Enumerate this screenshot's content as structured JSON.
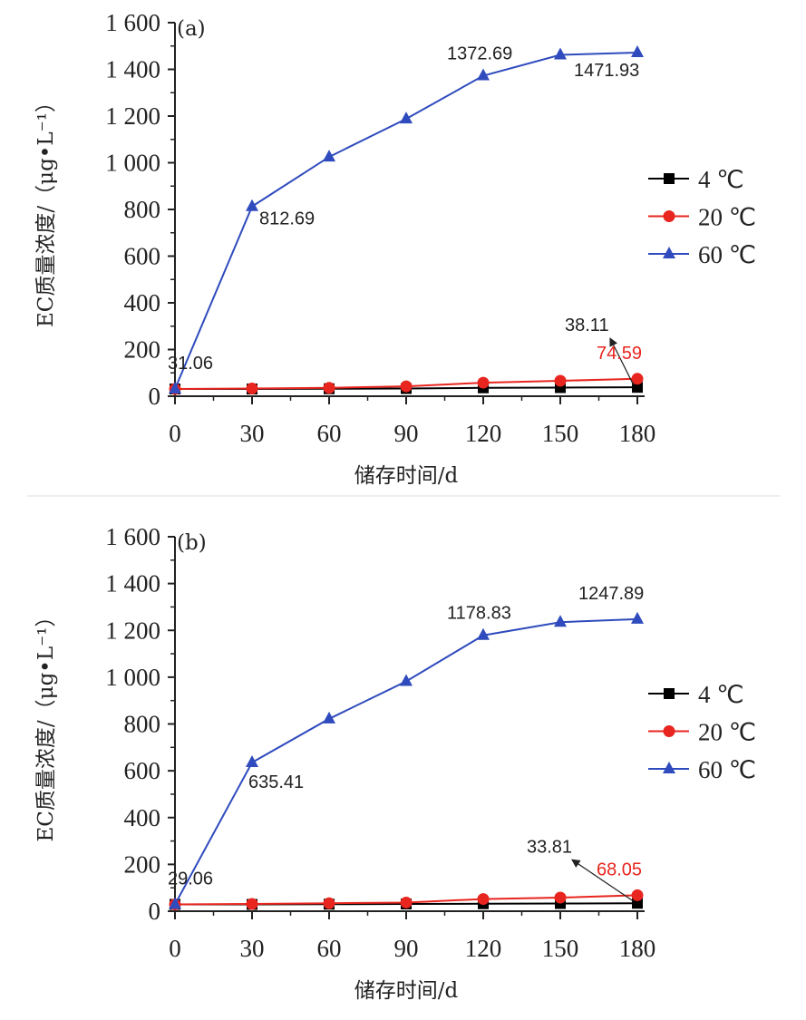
{
  "chart_data": [
    {
      "type": "line",
      "panel_label": "(a)",
      "xlabel": "储存时间/d",
      "ylabel": "EC质量浓度/（μg•L⁻¹）",
      "x": [
        0,
        30,
        60,
        90,
        120,
        150,
        180
      ],
      "xticks": [
        "0",
        "30",
        "60",
        "90",
        "120",
        "150",
        "180"
      ],
      "yticks": [
        "0",
        "200",
        "400",
        "600",
        "800",
        "1 000",
        "1 200",
        "1 400",
        "1 600"
      ],
      "ylim": [
        0,
        1600
      ],
      "legend_position": "right",
      "series": [
        {
          "name": "4 ℃",
          "color": "#000000",
          "marker": "square",
          "values": [
            31.06,
            31,
            32,
            33,
            36,
            37,
            38.11
          ]
        },
        {
          "name": "20 ℃",
          "color": "#e8251f",
          "marker": "circle",
          "values": [
            31.06,
            33,
            36,
            42,
            58,
            66,
            74.59
          ]
        },
        {
          "name": "60 ℃",
          "color": "#2f4bbd",
          "marker": "triangle",
          "values": [
            31.06,
            812.69,
            1025,
            1188,
            1372.69,
            1462,
            1471.93
          ]
        }
      ],
      "annotations": [
        {
          "text": "31.06",
          "x": 0,
          "y": 31.06,
          "color": "#222222"
        },
        {
          "text": "812.69",
          "x": 30,
          "y": 812.69,
          "color": "#222222"
        },
        {
          "text": "1372.69",
          "x": 120,
          "y": 1372.69,
          "color": "#222222"
        },
        {
          "text": "1471.93",
          "x": 180,
          "y": 1471.93,
          "color": "#222222"
        },
        {
          "text": "38.11",
          "x": 180,
          "y": 38.11,
          "color": "#222222",
          "arrow": true
        },
        {
          "text": "74.59",
          "x": 180,
          "y": 74.59,
          "color": "#e8251f"
        }
      ]
    },
    {
      "type": "line",
      "panel_label": "(b)",
      "xlabel": "储存时间/d",
      "ylabel": "EC质量浓度/（μg•L⁻¹）",
      "x": [
        0,
        30,
        60,
        90,
        120,
        150,
        180
      ],
      "xticks": [
        "0",
        "30",
        "60",
        "90",
        "120",
        "150",
        "180"
      ],
      "yticks": [
        "0",
        "200",
        "400",
        "600",
        "800",
        "1 000",
        "1 200",
        "1 400",
        "1 600"
      ],
      "ylim": [
        0,
        1600
      ],
      "legend_position": "right",
      "series": [
        {
          "name": "4 ℃",
          "color": "#000000",
          "marker": "square",
          "values": [
            29.06,
            29,
            30,
            31,
            32,
            33,
            33.81
          ]
        },
        {
          "name": "20 ℃",
          "color": "#e8251f",
          "marker": "circle",
          "values": [
            29.06,
            31,
            34,
            37,
            52,
            58,
            68.05
          ]
        },
        {
          "name": "60 ℃",
          "color": "#2f4bbd",
          "marker": "triangle",
          "values": [
            29.06,
            635.41,
            822,
            982,
            1178.83,
            1235,
            1247.89
          ]
        }
      ],
      "annotations": [
        {
          "text": "29.06",
          "x": 0,
          "y": 29.06,
          "color": "#222222"
        },
        {
          "text": "635.41",
          "x": 30,
          "y": 635.41,
          "color": "#222222"
        },
        {
          "text": "1178.83",
          "x": 120,
          "y": 1178.83,
          "color": "#222222"
        },
        {
          "text": "1247.89",
          "x": 180,
          "y": 1247.89,
          "color": "#222222"
        },
        {
          "text": "33.81",
          "x": 180,
          "y": 33.81,
          "color": "#222222",
          "arrow": true
        },
        {
          "text": "68.05",
          "x": 180,
          "y": 68.05,
          "color": "#e8251f"
        }
      ]
    }
  ]
}
